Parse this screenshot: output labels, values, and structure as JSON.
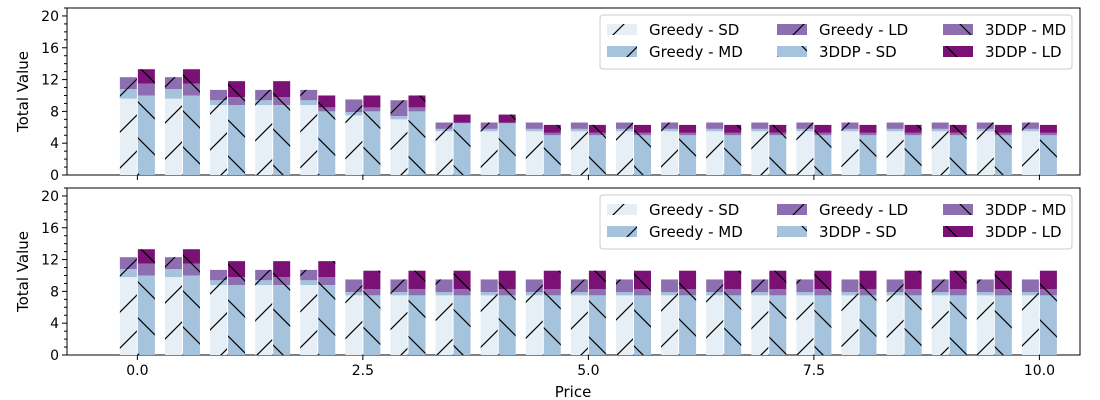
{
  "chart_data": [
    {
      "type": "bar",
      "stacked": true,
      "grouped": true,
      "xlabel": "",
      "ylabel": "Total Value",
      "ylim": [
        0,
        21
      ],
      "yticks": [
        "0",
        "4",
        "8",
        "12",
        "16",
        "20"
      ],
      "x": [
        0.0,
        0.5,
        1.0,
        1.5,
        2.0,
        2.5,
        3.0,
        3.5,
        4.0,
        4.5,
        5.0,
        5.5,
        6.0,
        6.5,
        7.0,
        7.5,
        8.0,
        8.5,
        9.0,
        9.5,
        10.0
      ],
      "groups": [
        {
          "name": "Greedy",
          "series": [
            {
              "name": "Greedy - SD",
              "values": [
                9.6,
                9.6,
                8.8,
                8.8,
                8.8,
                7.5,
                7.0,
                5.5,
                5.5,
                5.5,
                5.5,
                5.5,
                5.5,
                5.5,
                5.5,
                5.5,
                5.5,
                5.5,
                5.5,
                5.5,
                5.5
              ]
            },
            {
              "name": "Greedy - MD",
              "values": [
                1.2,
                1.2,
                0.6,
                0.6,
                0.6,
                0.4,
                0.4,
                0.3,
                0.3,
                0.3,
                0.3,
                0.3,
                0.3,
                0.3,
                0.3,
                0.3,
                0.3,
                0.3,
                0.3,
                0.3,
                0.3
              ]
            },
            {
              "name": "Greedy - LD",
              "values": [
                1.5,
                1.5,
                1.3,
                1.3,
                1.3,
                1.6,
                2.0,
                0.8,
                0.8,
                0.8,
                0.8,
                0.8,
                0.8,
                0.8,
                0.8,
                0.8,
                0.8,
                0.8,
                0.8,
                0.8,
                0.8
              ]
            }
          ]
        },
        {
          "name": "3DDP",
          "series": [
            {
              "name": "3DDP - SD",
              "values": [
                10.0,
                10.0,
                8.8,
                8.8,
                8.0,
                8.0,
                8.0,
                6.5,
                6.5,
                5.0,
                5.0,
                5.0,
                5.0,
                5.0,
                5.0,
                5.0,
                5.0,
                5.0,
                5.0,
                5.0,
                5.0
              ]
            },
            {
              "name": "3DDP - MD",
              "values": [
                1.5,
                1.5,
                1.0,
                1.0,
                0.5,
                0.5,
                0.5,
                0.1,
                0.1,
                0.3,
                0.3,
                0.3,
                0.3,
                0.3,
                0.3,
                0.3,
                0.3,
                0.3,
                0.3,
                0.3,
                0.3
              ]
            },
            {
              "name": "3DDP - LD",
              "values": [
                1.8,
                1.8,
                2.0,
                2.0,
                1.5,
                1.5,
                1.5,
                1.0,
                1.0,
                1.0,
                1.0,
                1.0,
                1.0,
                1.0,
                1.0,
                1.0,
                1.0,
                1.0,
                1.0,
                1.0,
                1.0
              ]
            }
          ]
        }
      ]
    },
    {
      "type": "bar",
      "stacked": true,
      "grouped": true,
      "xlabel": "Price",
      "ylabel": "Total Value",
      "ylim": [
        0,
        21
      ],
      "yticks": [
        "0",
        "4",
        "8",
        "12",
        "16",
        "20"
      ],
      "xticks": [
        "0.0",
        "2.5",
        "5.0",
        "7.5",
        "10.0"
      ],
      "xtick_values": [
        0,
        2.5,
        5,
        7.5,
        10
      ],
      "x": [
        0.0,
        0.5,
        1.0,
        1.5,
        2.0,
        2.5,
        3.0,
        3.5,
        4.0,
        4.5,
        5.0,
        5.5,
        6.0,
        6.5,
        7.0,
        7.5,
        8.0,
        8.5,
        9.0,
        9.5,
        10.0
      ],
      "groups": [
        {
          "name": "Greedy",
          "series": [
            {
              "name": "Greedy - SD",
              "values": [
                9.8,
                9.8,
                8.8,
                8.8,
                8.8,
                7.5,
                7.5,
                7.5,
                7.5,
                7.5,
                7.5,
                7.5,
                7.5,
                7.5,
                7.5,
                7.5,
                7.5,
                7.5,
                7.5,
                7.5,
                7.5
              ]
            },
            {
              "name": "Greedy - MD",
              "values": [
                1.0,
                1.0,
                0.6,
                0.6,
                0.6,
                0.4,
                0.4,
                0.4,
                0.4,
                0.4,
                0.4,
                0.4,
                0.4,
                0.4,
                0.4,
                0.4,
                0.4,
                0.4,
                0.4,
                0.4,
                0.4
              ]
            },
            {
              "name": "Greedy - LD",
              "values": [
                1.5,
                1.5,
                1.3,
                1.3,
                1.3,
                1.6,
                1.6,
                1.6,
                1.6,
                1.6,
                1.6,
                1.6,
                1.6,
                1.6,
                1.6,
                1.6,
                1.6,
                1.6,
                1.6,
                1.6,
                1.6
              ]
            }
          ]
        },
        {
          "name": "3DDP",
          "series": [
            {
              "name": "3DDP - SD",
              "values": [
                10.0,
                10.0,
                8.8,
                8.8,
                8.8,
                7.5,
                7.5,
                7.5,
                7.5,
                7.5,
                7.5,
                7.5,
                7.5,
                7.5,
                7.5,
                7.5,
                7.5,
                7.5,
                7.5,
                7.5,
                7.5
              ]
            },
            {
              "name": "3DDP - MD",
              "values": [
                1.5,
                1.5,
                1.0,
                1.0,
                1.0,
                0.8,
                0.8,
                0.8,
                0.8,
                0.8,
                0.8,
                0.8,
                0.8,
                0.8,
                0.8,
                0.8,
                0.8,
                0.8,
                0.8,
                0.8,
                0.8
              ]
            },
            {
              "name": "3DDP - LD",
              "values": [
                1.8,
                1.8,
                2.0,
                2.0,
                2.0,
                2.3,
                2.3,
                2.3,
                2.3,
                2.3,
                2.3,
                2.3,
                2.3,
                2.3,
                2.3,
                2.3,
                2.3,
                2.3,
                2.3,
                2.3,
                2.3
              ]
            }
          ]
        }
      ]
    }
  ],
  "legend": {
    "placement": "top-right",
    "columns": 3,
    "entries": [
      "Greedy - SD",
      "Greedy - MD",
      "Greedy - LD",
      "3DDP - SD",
      "3DDP - MD",
      "3DDP - LD"
    ]
  },
  "colors": {
    "Greedy - SD": "#e5eff5",
    "Greedy - MD": "#a6c3de",
    "Greedy - LD": "#8d6fb1",
    "3DDP - SD": "#a6c3de",
    "3DDP - MD": "#8d6fb1",
    "3DDP - LD": "#7b1175"
  },
  "hatches": {
    "Greedy": "forward-slash",
    "3DDP": "back-slash"
  }
}
